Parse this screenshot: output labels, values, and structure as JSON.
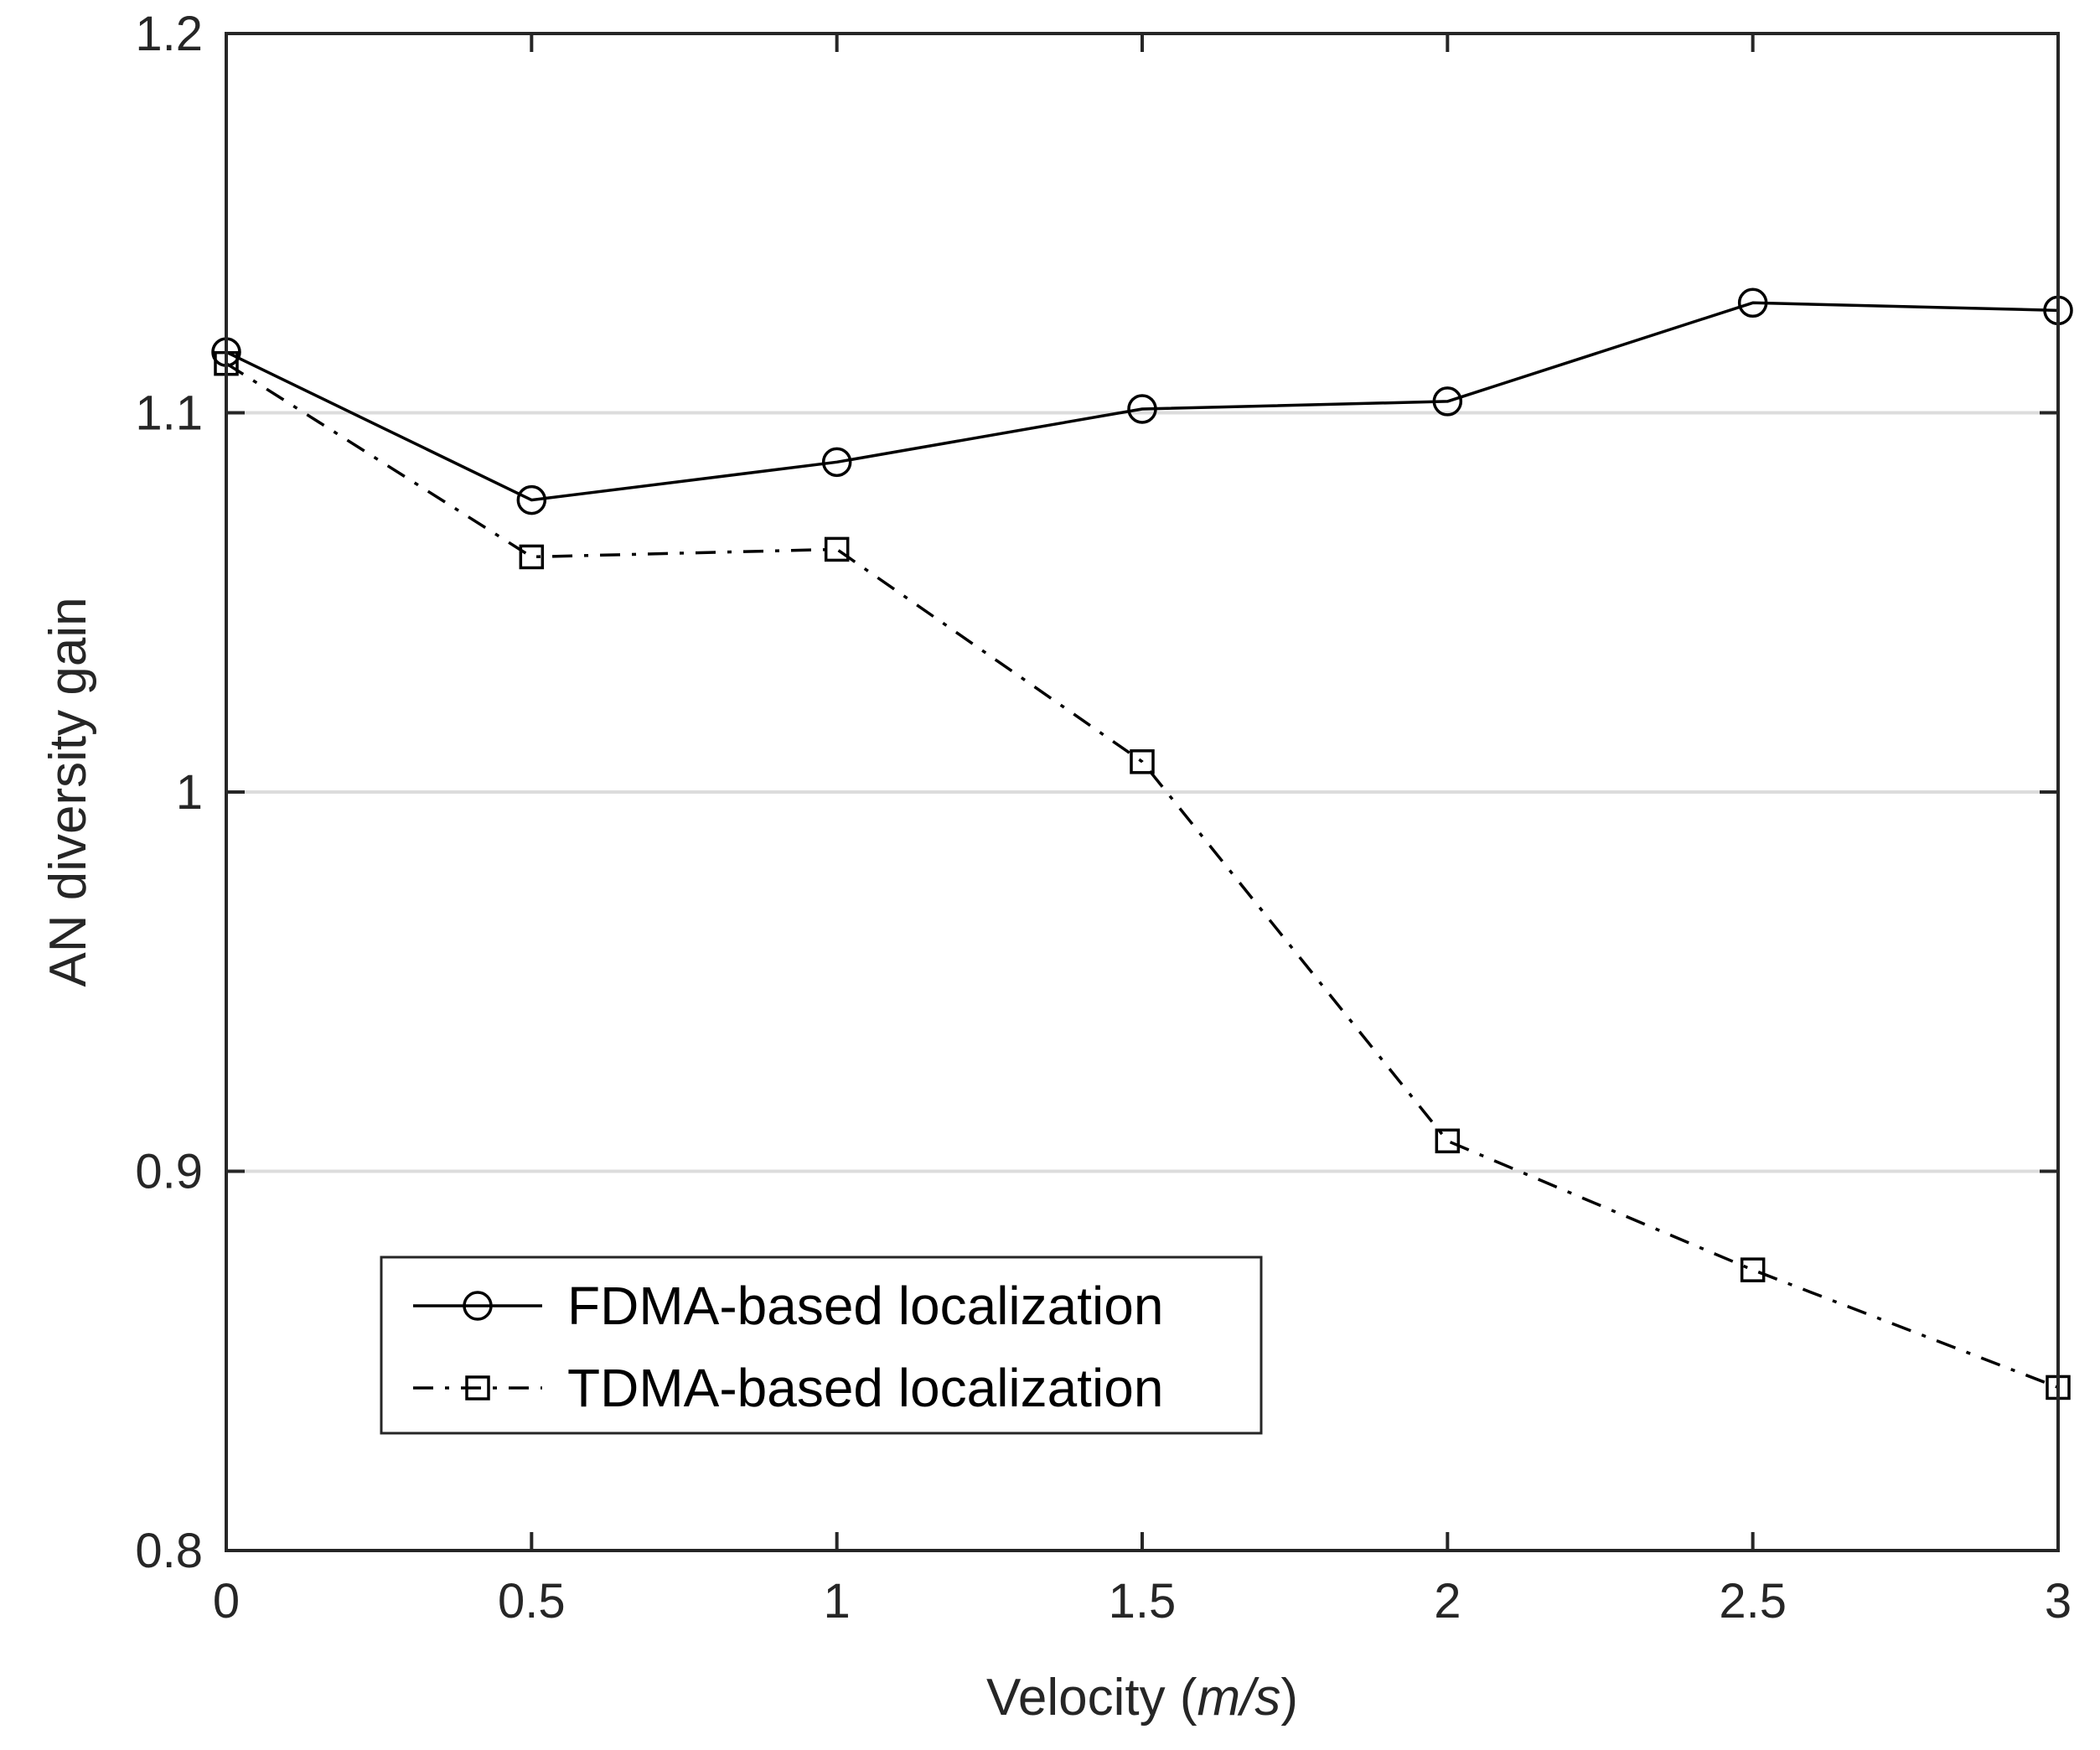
{
  "chart_data": {
    "type": "line",
    "title": "",
    "xlabel": "Velocity",
    "xlabel_unit": "m/s",
    "ylabel": "AN diversity gain",
    "x": [
      0,
      0.5,
      1,
      1.5,
      2,
      2.5,
      3
    ],
    "xlim": [
      0,
      3
    ],
    "ylim": [
      0.8,
      1.2
    ],
    "xticks": [
      0,
      0.5,
      1,
      1.5,
      2,
      2.5,
      3
    ],
    "xtick_labels": [
      "0",
      "0.5",
      "1",
      "1.5",
      "2",
      "2.5",
      "3"
    ],
    "yticks": [
      0.8,
      0.9,
      1.0,
      1.1,
      1.2
    ],
    "ytick_labels": [
      "0.8",
      "0.9",
      "1",
      "1.1",
      "1.2"
    ],
    "grid": "horizontal",
    "legend_position": "bottom-left",
    "series": [
      {
        "name": "FDMA-based localization",
        "marker": "circle",
        "line_style": "solid",
        "color": "#000000",
        "values": [
          1.116,
          1.077,
          1.087,
          1.101,
          1.103,
          1.129,
          1.127
        ]
      },
      {
        "name": "TDMA-based localization",
        "marker": "square",
        "line_style": "dash-dot",
        "color": "#000000",
        "values": [
          1.113,
          1.062,
          1.064,
          1.008,
          0.908,
          0.874,
          0.843
        ]
      }
    ]
  }
}
